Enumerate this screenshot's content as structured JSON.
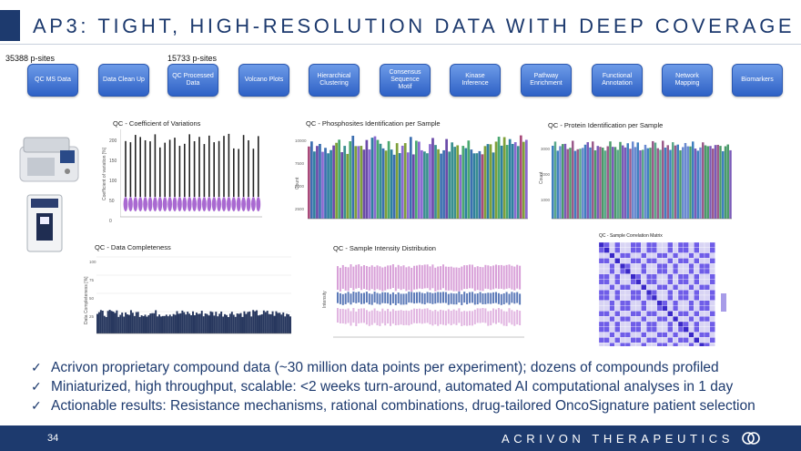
{
  "slide": {
    "title": "AP3: TIGHT, HIGH-RESOLUTION DATA WITH DEEP COVERAGE",
    "psites_left": "35388 p-sites",
    "psites_right": "15733 p-sites"
  },
  "pipeline": {
    "steps": [
      "QC MS Data",
      "Data Clean Up",
      "QC Processed Data",
      "Volcano Plots",
      "Hierarchical Clustering",
      "Consensus Sequence Motif",
      "Kinase Inference",
      "Pathway Enrichment",
      "Functional Annotation",
      "Network Mapping",
      "Biomarkers"
    ]
  },
  "panels": {
    "cv": {
      "title": "QC - Coefficient of Variations",
      "ylabel": "Coefficient of variation [%]",
      "yticks": [
        "200",
        "150",
        "100",
        "50",
        "0"
      ]
    },
    "phospho": {
      "title": "QC - Phosphosites Identification per Sample",
      "ylabel": "Count",
      "yticks": [
        "10000",
        "7500",
        "5000",
        "2500"
      ]
    },
    "protein": {
      "title": "QC - Protein Identification per Sample",
      "ylabel": "Count",
      "yticks": [
        "3000",
        "2000",
        "1000"
      ]
    },
    "completeness": {
      "title": "QC - Data Completeness",
      "ylabel": "Data Completeness [%]",
      "yticks": [
        "100",
        "75",
        "50",
        "25"
      ]
    },
    "intensity": {
      "title": "QC - Sample Intensity Distribution",
      "ylabel": "Intensity"
    },
    "correlation": {
      "title": "QC - Sample Correlation Matrix"
    }
  },
  "colors": {
    "brand_navy": "#1d3a6e",
    "step_blue": "#3d6fd0",
    "violin_purple": "#9a4fc9",
    "intensity_pink": "#c878c8",
    "intensity_blue": "#5b79b8",
    "corr_purple": "#6f5de8"
  },
  "bullets": [
    "Acrivon proprietary compound data (~30 million data points per experiment); dozens of compounds profiled",
    "Miniaturized, high throughput, scalable: <2 weeks turn-around, automated AI computational analyses in 1 day",
    "Actionable results: Resistance mechanisms, rational combinations, drug-tailored OncoSignature patient selection"
  ],
  "footer": {
    "page_number": "34",
    "brand": "ACRIVON THERAPEUTICS"
  }
}
